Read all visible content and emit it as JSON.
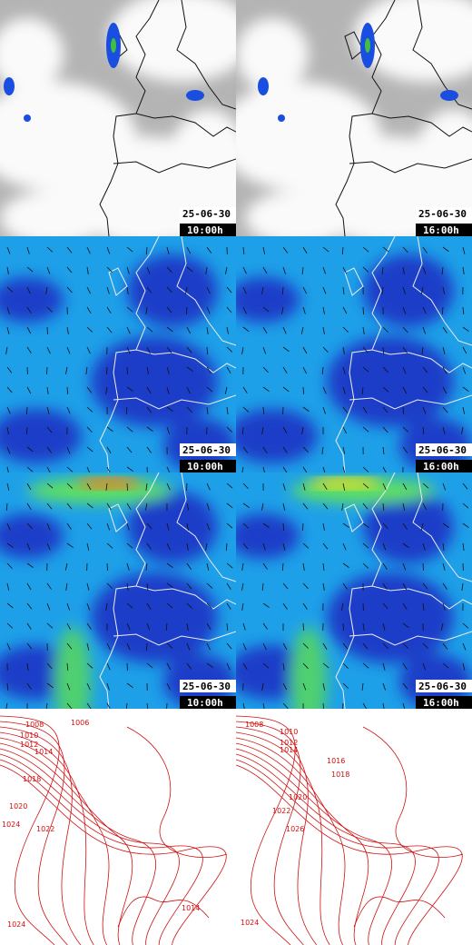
{
  "panels": [
    {
      "date": "25-06-30",
      "time": "10:00h"
    },
    {
      "date": "25-06-30",
      "time": "16:00h"
    },
    {
      "date": "25-06-30",
      "time": "10:00h"
    },
    {
      "date": "25-06-30",
      "time": "16:00h"
    },
    {
      "date": "25-06-30",
      "time": "10:00h"
    },
    {
      "date": "25-06-30",
      "time": "16:00h"
    }
  ],
  "isobars": [
    {
      "labels": [
        "1008",
        "1006",
        "1010",
        "1012",
        "1014",
        "1018",
        "1020",
        "1024",
        "1022",
        "1014",
        "1024"
      ]
    },
    {
      "labels": [
        "1008",
        "1010",
        "1012",
        "1014",
        "1016",
        "1018",
        "1020",
        "1022",
        "1026",
        "1024"
      ]
    }
  ]
}
